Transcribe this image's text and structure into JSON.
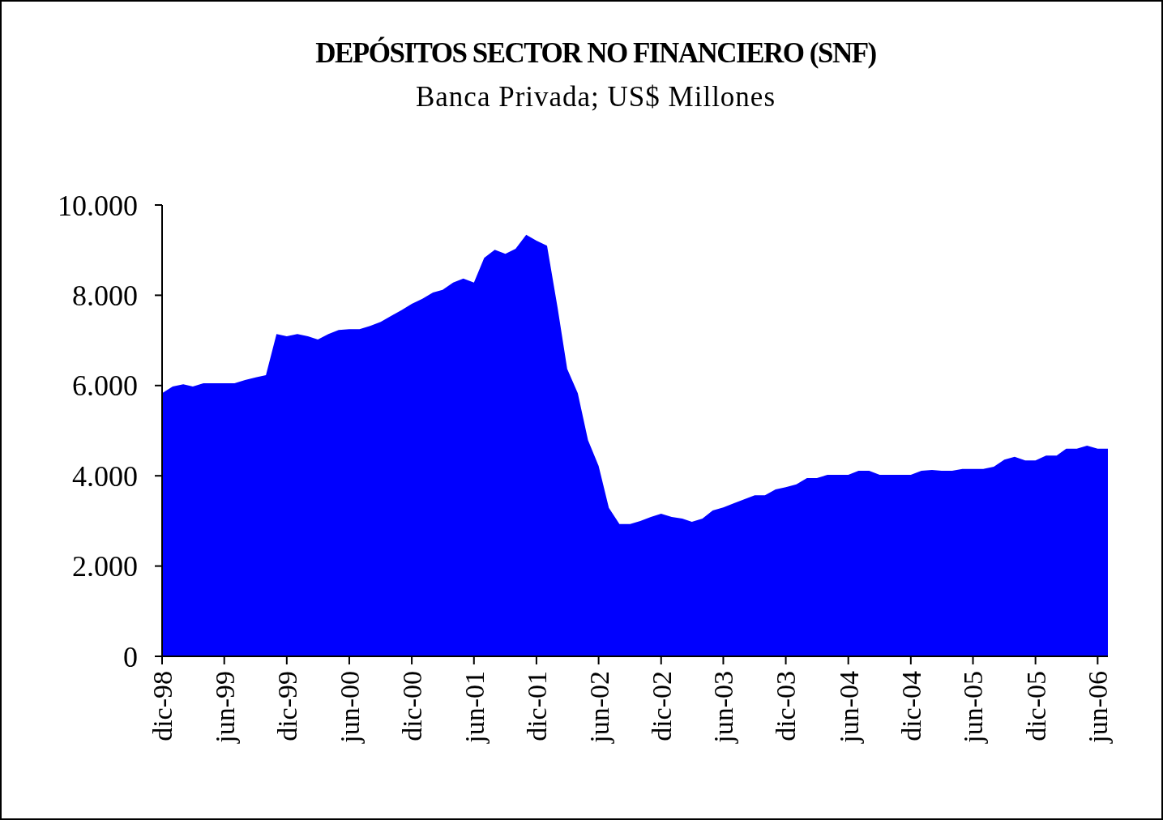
{
  "chart_data": {
    "type": "area",
    "title": "DEPÓSITOS SECTOR NO FINANCIERO (SNF)",
    "subtitle": "Banca Privada; US$ Millones",
    "x": [
      "1998-12",
      "1999-01",
      "1999-02",
      "1999-03",
      "1999-04",
      "1999-05",
      "1999-06",
      "1999-07",
      "1999-08",
      "1999-09",
      "1999-10",
      "1999-11",
      "1999-12",
      "2000-01",
      "2000-02",
      "2000-03",
      "2000-04",
      "2000-05",
      "2000-06",
      "2000-07",
      "2000-08",
      "2000-09",
      "2000-10",
      "2000-11",
      "2000-12",
      "2001-01",
      "2001-02",
      "2001-03",
      "2001-04",
      "2001-05",
      "2001-06",
      "2001-07",
      "2001-08",
      "2001-09",
      "2001-10",
      "2001-11",
      "2001-12",
      "2002-01",
      "2002-02",
      "2002-03",
      "2002-04",
      "2002-05",
      "2002-06",
      "2002-07",
      "2002-08",
      "2002-09",
      "2002-10",
      "2002-11",
      "2002-12",
      "2003-01",
      "2003-02",
      "2003-03",
      "2003-04",
      "2003-05",
      "2003-06",
      "2003-07",
      "2003-08",
      "2003-09",
      "2003-10",
      "2003-11",
      "2003-12",
      "2004-01",
      "2004-02",
      "2004-03",
      "2004-04",
      "2004-05",
      "2004-06",
      "2004-07",
      "2004-08",
      "2004-09",
      "2004-10",
      "2004-11",
      "2004-12",
      "2005-01",
      "2005-02",
      "2005-03",
      "2005-04",
      "2005-05",
      "2005-06",
      "2005-07",
      "2005-08",
      "2005-09",
      "2005-10",
      "2005-11",
      "2005-12",
      "2006-01",
      "2006-02",
      "2006-03",
      "2006-04",
      "2006-05",
      "2006-06",
      "2006-07"
    ],
    "series": [
      {
        "color": "#0000ff",
        "values": [
          5830,
          5980,
          6030,
          5980,
          6050,
          6050,
          6050,
          6050,
          6120,
          6180,
          6230,
          7140,
          7090,
          7140,
          7090,
          7020,
          7140,
          7230,
          7250,
          7250,
          7320,
          7410,
          7540,
          7670,
          7810,
          7920,
          8060,
          8120,
          8280,
          8370,
          8280,
          8830,
          9010,
          8920,
          9030,
          9340,
          9210,
          9100,
          7720,
          6370,
          5830,
          4790,
          4220,
          3290,
          2930,
          2930,
          3000,
          3090,
          3160,
          3090,
          3050,
          2980,
          3050,
          3230,
          3300,
          3390,
          3480,
          3570,
          3570,
          3700,
          3750,
          3810,
          3950,
          3950,
          4020,
          4020,
          4020,
          4110,
          4110,
          4020,
          4020,
          4020,
          4020,
          4110,
          4130,
          4110,
          4110,
          4150,
          4150,
          4150,
          4200,
          4360,
          4420,
          4340,
          4340,
          4450,
          4450,
          4600,
          4600,
          4670,
          4600,
          4600
        ]
      }
    ],
    "xlim": [
      "1998-12",
      "2006-07"
    ],
    "xticks": [
      {
        "value": "1998-12",
        "label": "dic-98"
      },
      {
        "value": "1999-06",
        "label": "jun-99"
      },
      {
        "value": "1999-12",
        "label": "dic-99"
      },
      {
        "value": "2000-06",
        "label": "jun-00"
      },
      {
        "value": "2000-12",
        "label": "dic-00"
      },
      {
        "value": "2001-06",
        "label": "jun-01"
      },
      {
        "value": "2001-12",
        "label": "dic-01"
      },
      {
        "value": "2002-06",
        "label": "jun-02"
      },
      {
        "value": "2002-12",
        "label": "dic-02"
      },
      {
        "value": "2003-06",
        "label": "jun-03"
      },
      {
        "value": "2003-12",
        "label": "dic-03"
      },
      {
        "value": "2004-06",
        "label": "jun-04"
      },
      {
        "value": "2004-12",
        "label": "dic-04"
      },
      {
        "value": "2005-06",
        "label": "jun-05"
      },
      {
        "value": "2005-12",
        "label": "dic-05"
      },
      {
        "value": "2006-06",
        "label": "jun-06"
      }
    ],
    "ylim": [
      0,
      10000
    ],
    "yticks": [
      {
        "value": 0,
        "label": "0"
      },
      {
        "value": 2000,
        "label": "2.000"
      },
      {
        "value": 4000,
        "label": "4.000"
      },
      {
        "value": 6000,
        "label": "6.000"
      },
      {
        "value": 8000,
        "label": "8.000"
      },
      {
        "value": 10000,
        "label": "10.000"
      }
    ],
    "grid": false
  }
}
